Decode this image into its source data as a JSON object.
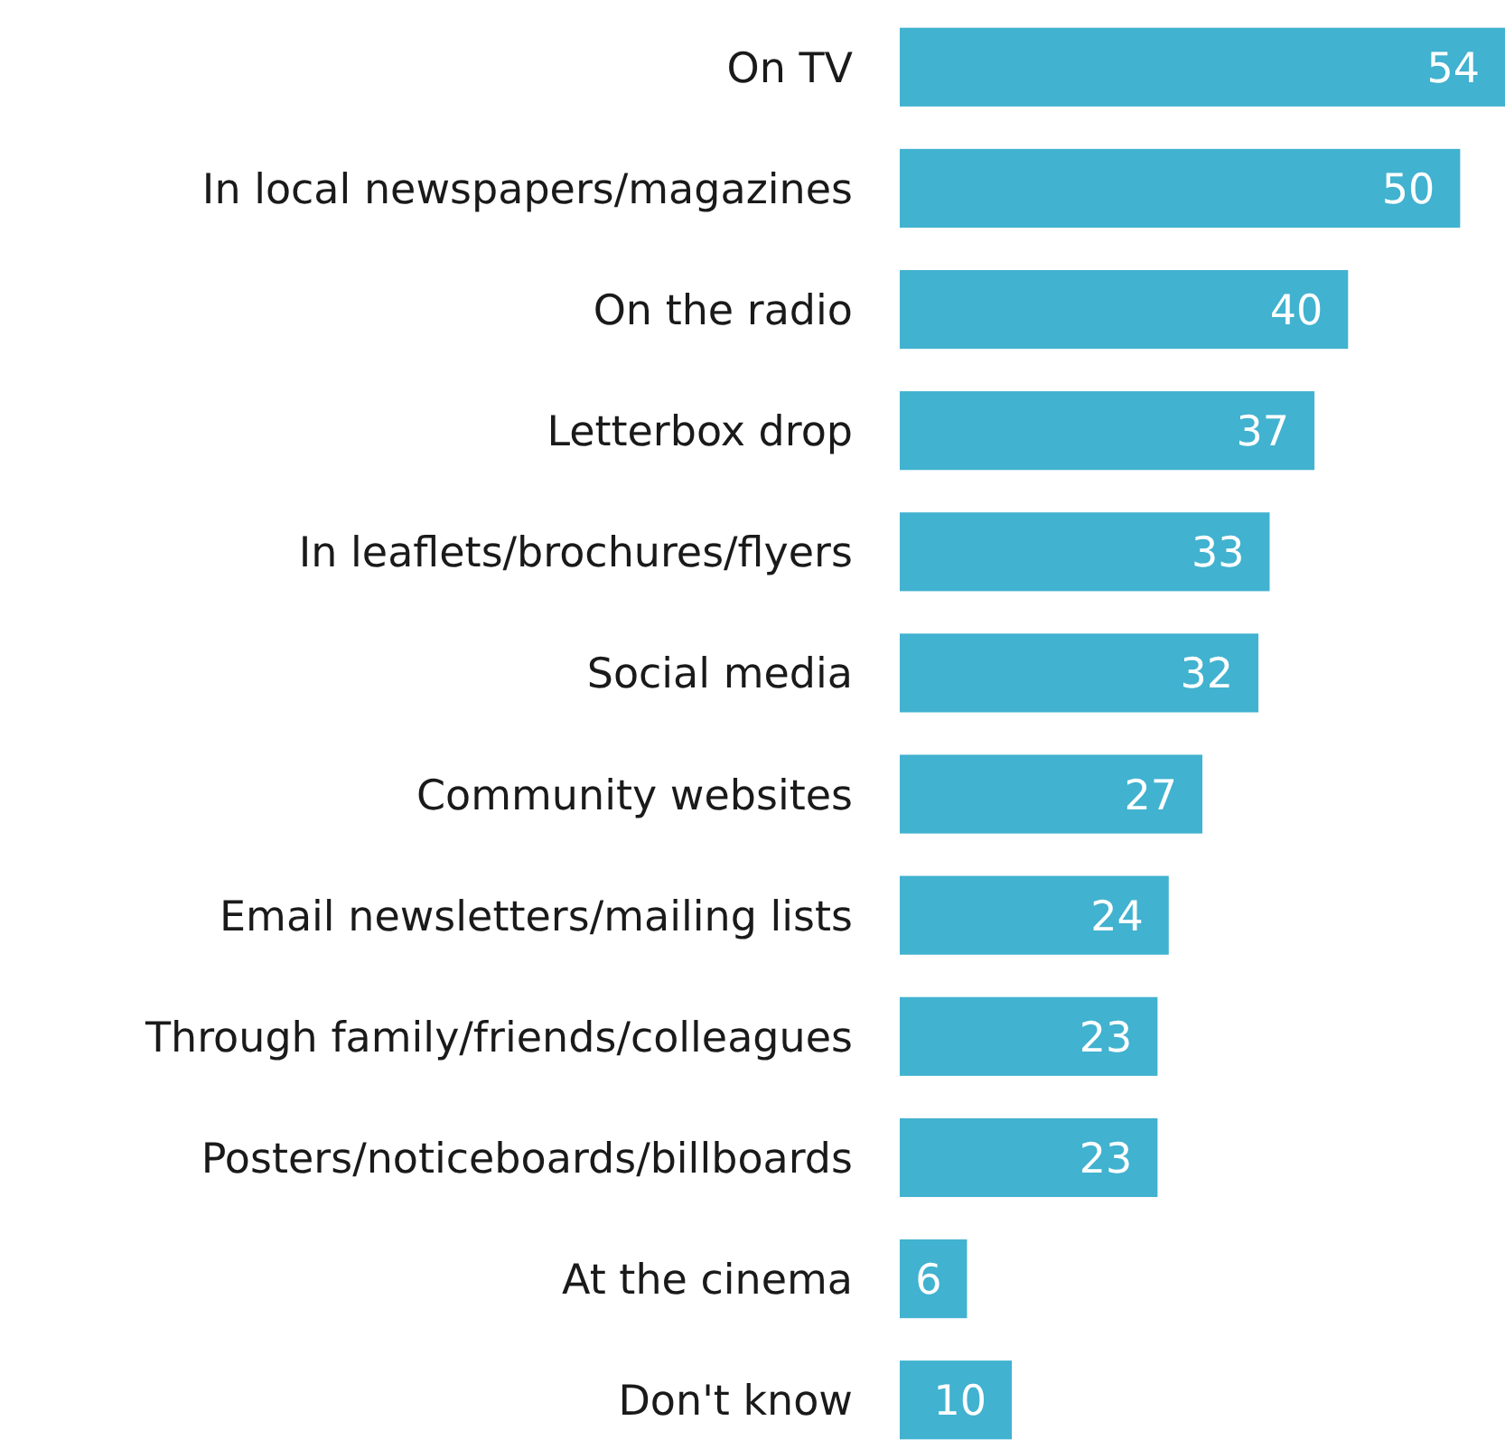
{
  "chart_data": {
    "type": "bar",
    "orientation": "horizontal",
    "categories": [
      "On TV",
      "In local newspapers/magazines",
      "On the radio",
      "Letterbox drop",
      "In leaflets/brochures/flyers",
      "Social media",
      "Community websites",
      "Email newsletters/mailing lists",
      "Through family/friends/colleagues",
      "Posters/noticeboards/billboards",
      "At the cinema",
      "Don't know"
    ],
    "values": [
      54,
      50,
      40,
      37,
      33,
      32,
      27,
      24,
      23,
      23,
      6,
      10
    ],
    "color": "#41b2cf",
    "data_labels": true
  }
}
